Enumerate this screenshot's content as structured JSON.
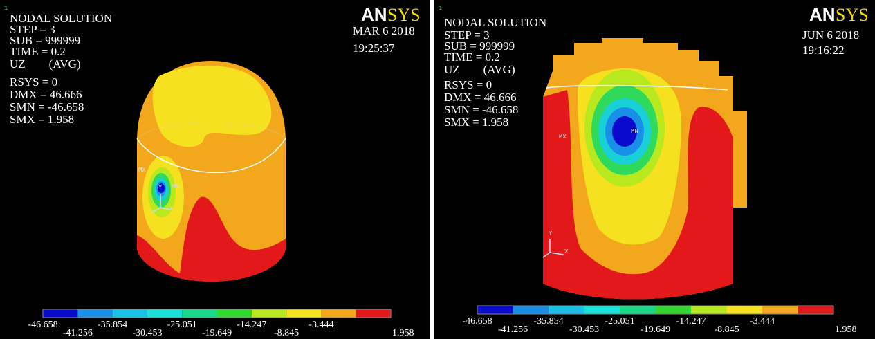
{
  "panels": [
    {
      "window_number": "1",
      "brand_a": "AN",
      "brand_b": "SYS",
      "info": [
        "NODAL SOLUTION",
        "STEP = 3",
        "SUB = 999999",
        "TIME = 0.2",
        "UZ        (AVG)",
        "RSYS = 0",
        "DMX = 46.666",
        "SMN = -46.658",
        "SMX = 1.958"
      ],
      "date": "MAR 6 2018",
      "time": "19:25:37",
      "marks": {
        "mx": "MX",
        "mn": "MN",
        "y": "Y",
        "x": "X"
      },
      "legend": [
        "-46.658",
        "-41.256",
        "-35.854",
        "-30.453",
        "-25.051",
        "-19.649",
        "-14.247",
        "-8.845",
        "-3.444",
        "1.958"
      ]
    },
    {
      "window_number": "1",
      "brand_a": "AN",
      "brand_b": "SYS",
      "info": [
        "NODAL SOLUTION",
        "STEP = 3",
        "SUB = 999999",
        "TIME = 0.2",
        "UZ        (AVG)",
        "RSYS = 0",
        "DMX = 46.666",
        "SMN = -46.658",
        "SMX = 1.958"
      ],
      "date": "JUN 6 2018",
      "time": "19:16:22",
      "marks": {
        "mx": "MX",
        "mn": "MN",
        "y": "Y",
        "x": "X"
      },
      "legend": [
        "-46.658",
        "-41.256",
        "-35.854",
        "-30.453",
        "-25.051",
        "-19.649",
        "-14.247",
        "-8.845",
        "-3.444",
        "1.958"
      ]
    }
  ]
}
